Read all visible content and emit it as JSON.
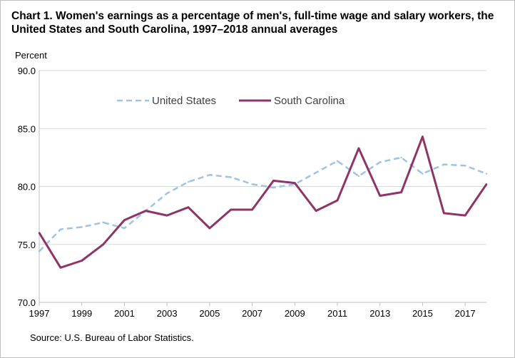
{
  "chart_data": {
    "type": "line",
    "title": "Chart 1. Women's earnings as a percentage of men's, full-time wage and salary workers, the United States and South Carolina, 1997–2018 annual averages",
    "ylabel": "Percent",
    "xlabel": "",
    "ylim": [
      70,
      90
    ],
    "yticks": [
      "70.0",
      "75.0",
      "80.0",
      "85.0",
      "90.0"
    ],
    "xticks": [
      "1997",
      "1999",
      "2001",
      "2003",
      "2005",
      "2007",
      "2009",
      "2011",
      "2013",
      "2015",
      "2017"
    ],
    "x": [
      1997,
      1998,
      1999,
      2000,
      2001,
      2002,
      2003,
      2004,
      2005,
      2006,
      2007,
      2008,
      2009,
      2010,
      2011,
      2012,
      2013,
      2014,
      2015,
      2016,
      2017,
      2018
    ],
    "series": [
      {
        "name": "United States",
        "color": "#9dc3e6",
        "style": "dashed",
        "values": [
          74.4,
          76.3,
          76.5,
          76.9,
          76.4,
          77.9,
          79.4,
          80.4,
          81.0,
          80.8,
          80.2,
          79.9,
          80.2,
          81.2,
          82.2,
          80.9,
          82.1,
          82.5,
          81.1,
          81.9,
          81.8,
          81.1
        ]
      },
      {
        "name": "South Carolina",
        "color": "#8e3467",
        "style": "solid",
        "values": [
          76.0,
          73.0,
          73.6,
          75.0,
          77.1,
          77.9,
          77.5,
          78.2,
          76.4,
          78.0,
          78.0,
          80.5,
          80.3,
          77.9,
          78.8,
          83.3,
          79.2,
          79.5,
          84.3,
          77.7,
          77.5,
          80.2
        ]
      }
    ],
    "grid": "horizontal",
    "legend": "top-center"
  },
  "source": "Source:  U.S. Bureau of Labor Statistics."
}
